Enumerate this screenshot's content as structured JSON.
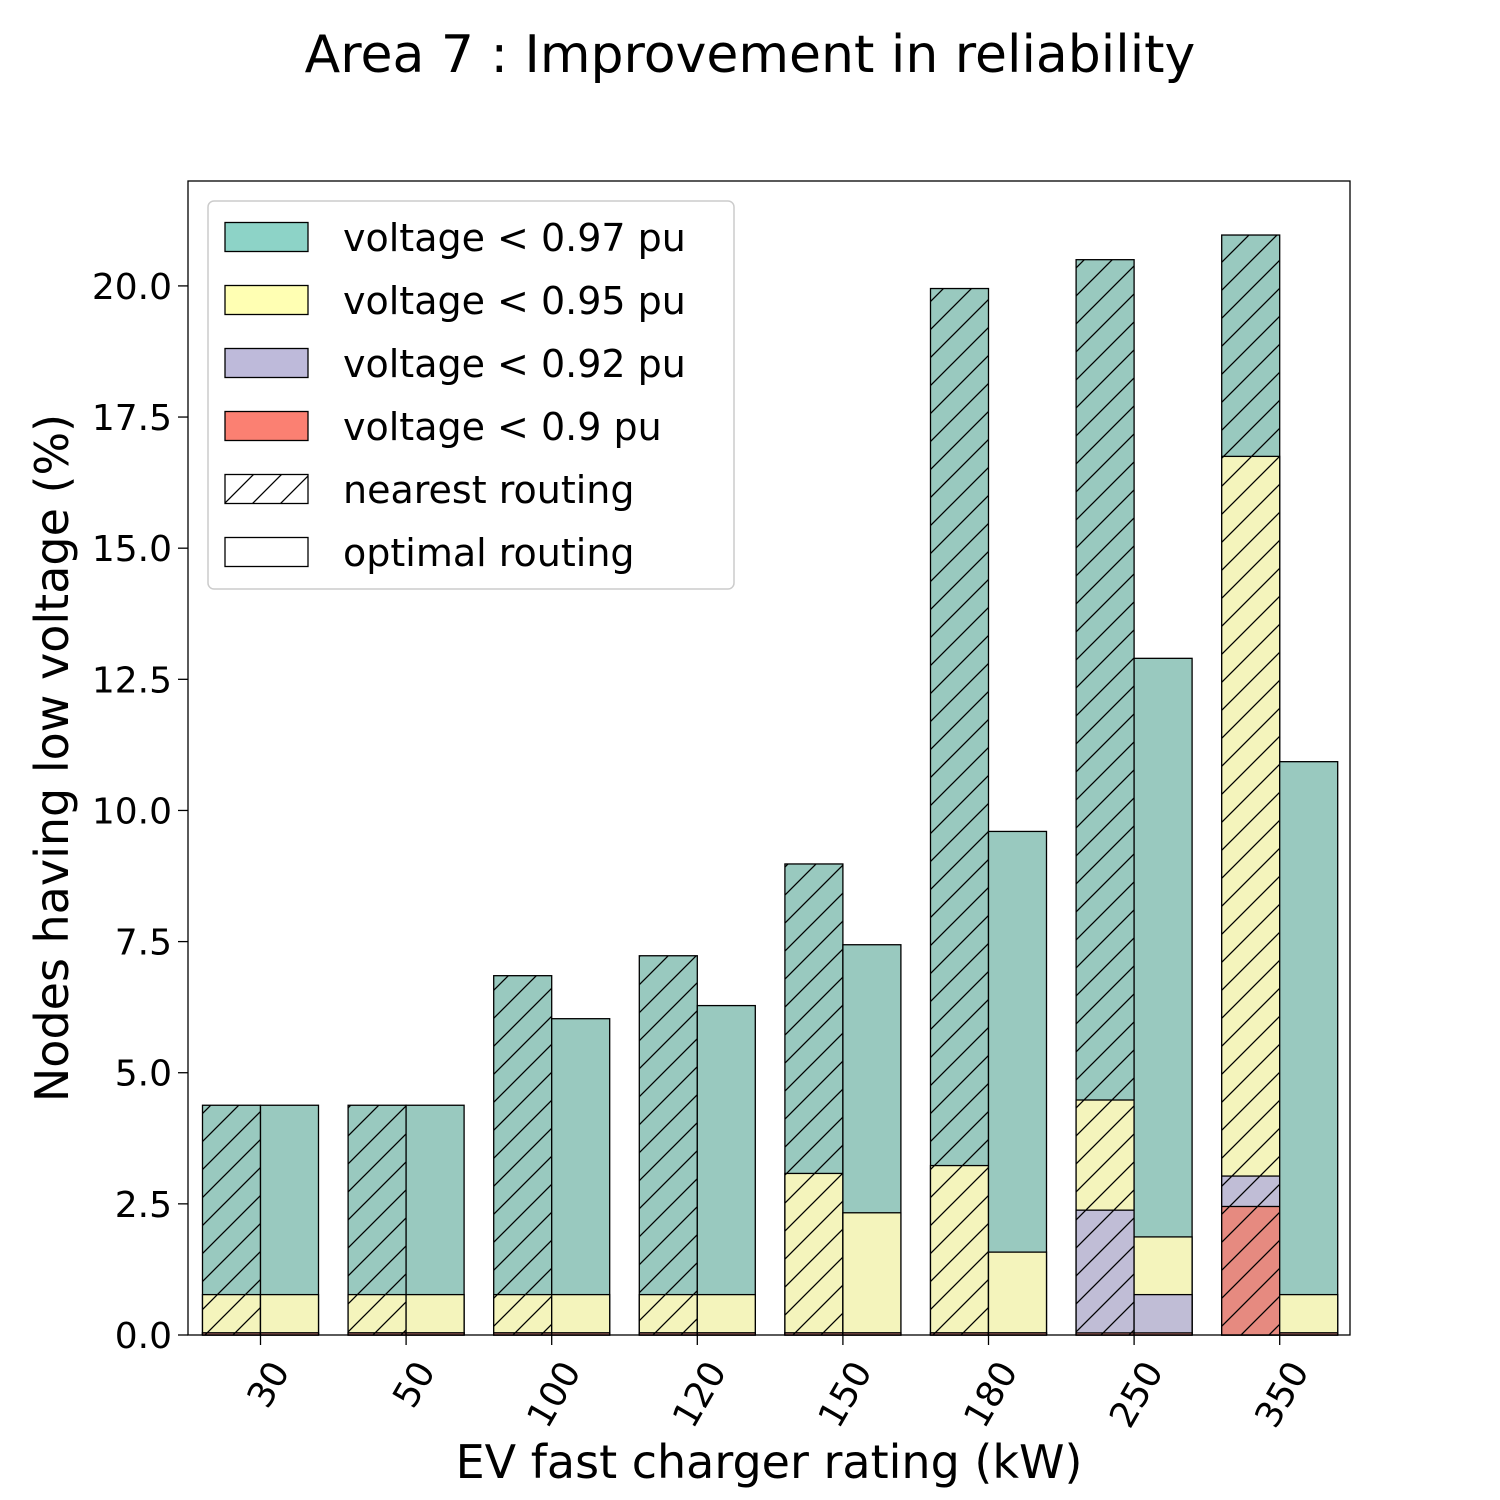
{
  "chart_data": {
    "type": "bar",
    "title": "Area 7 : Improvement in reliability",
    "xlabel": "EV fast charger rating (kW)",
    "ylabel": "Nodes having low voltage (%)",
    "categories": [
      "30",
      "50",
      "100",
      "120",
      "150",
      "180",
      "250",
      "350"
    ],
    "ylim": [
      0,
      22
    ],
    "yticks": [
      "0.0",
      "2.5",
      "5.0",
      "7.5",
      "10.0",
      "12.5",
      "15.0",
      "17.5",
      "20.0"
    ],
    "grid": false,
    "legend_position": "top-left",
    "stacking": "overlaid",
    "series": [
      {
        "name": "voltage < 0.97 pu",
        "color": "#99c9bf",
        "nearest": [
          4.38,
          4.38,
          6.85,
          7.23,
          8.98,
          19.95,
          20.5,
          20.97
        ],
        "optimal": [
          4.38,
          4.38,
          6.03,
          6.28,
          7.44,
          9.6,
          12.9,
          10.93
        ]
      },
      {
        "name": "voltage < 0.95 pu",
        "color": "#f4f4bc",
        "nearest": [
          0.77,
          0.77,
          0.77,
          0.77,
          3.08,
          3.23,
          4.48,
          16.75
        ],
        "optimal": [
          0.77,
          0.77,
          0.77,
          0.77,
          2.33,
          1.58,
          1.87,
          0.77
        ]
      },
      {
        "name": "voltage < 0.92 pu",
        "color": "#c0bdd6",
        "nearest": [
          0.04,
          0.04,
          0.04,
          0.04,
          0.04,
          0.04,
          2.38,
          3.03
        ],
        "optimal": [
          0.04,
          0.04,
          0.04,
          0.04,
          0.04,
          0.04,
          0.77,
          0.04
        ]
      },
      {
        "name": "voltage < 0.9 pu",
        "color": "#e68a80",
        "nearest": [
          0.04,
          0.04,
          0.04,
          0.04,
          0.04,
          0.04,
          0.04,
          2.45
        ],
        "optimal": [
          0.04,
          0.04,
          0.04,
          0.04,
          0.04,
          0.04,
          0.04,
          0.04
        ]
      }
    ],
    "legend": {
      "series_colors": [
        "#8dd3c7",
        "#ffffb3",
        "#bebada",
        "#fb8072"
      ],
      "hatch_entries": [
        "nearest routing",
        "optimal routing"
      ]
    }
  }
}
